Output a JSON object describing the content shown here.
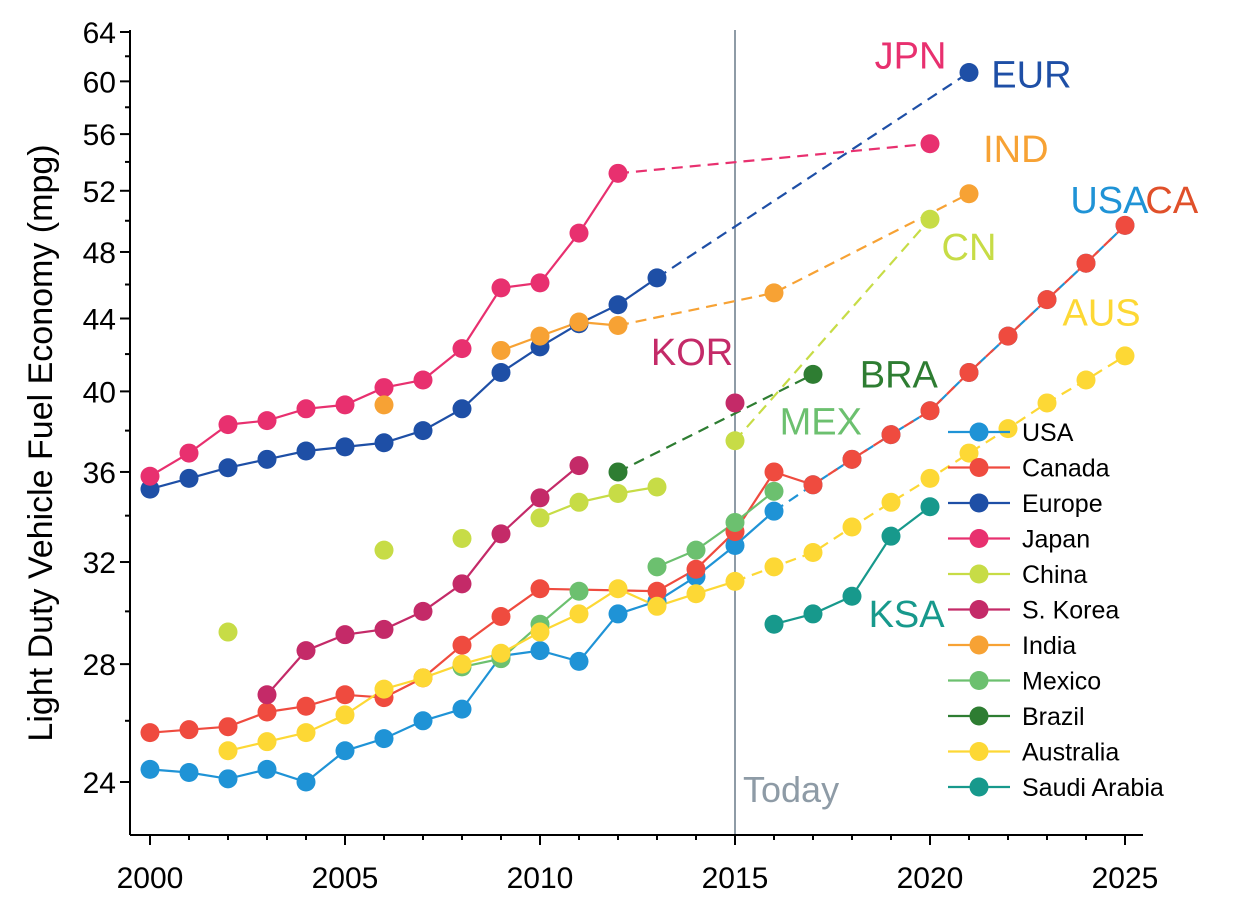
{
  "chart_data": {
    "type": "line",
    "ylabel": "Light Duty Vehicle Fuel Economy (mpg)",
    "xlabel": "",
    "xlim": [
      1999.5,
      2025.5
    ],
    "ylim": [
      22.8,
      64
    ],
    "y_scale": "log",
    "x_ticks": [
      2000,
      2005,
      2010,
      2015,
      2020,
      2025
    ],
    "y_ticks": [
      24,
      28,
      32,
      36,
      40,
      44,
      48,
      52,
      56,
      60,
      64
    ],
    "today_line": {
      "x": 2015,
      "label": "Today"
    },
    "series": [
      {
        "name": "USA",
        "color": "#1f93d6",
        "solid": [
          [
            2000,
            24.4
          ],
          [
            2001,
            24.3
          ],
          [
            2002,
            24.1
          ],
          [
            2003,
            24.4
          ],
          [
            2004,
            24.0
          ],
          [
            2005,
            25.0
          ],
          [
            2006,
            25.4
          ],
          [
            2007,
            26.0
          ],
          [
            2008,
            26.4
          ],
          [
            2009,
            28.3
          ],
          [
            2010,
            28.5
          ],
          [
            2011,
            28.1
          ],
          [
            2012,
            29.9
          ],
          [
            2013,
            30.4
          ],
          [
            2014,
            31.4
          ],
          [
            2015,
            32.7
          ],
          [
            2016,
            34.2
          ]
        ],
        "dashed": [
          [
            2016,
            34.2
          ],
          [
            2017,
            35.4
          ],
          [
            2018,
            36.6
          ],
          [
            2019,
            37.8
          ],
          [
            2020,
            39.0
          ],
          [
            2021,
            41.0
          ],
          [
            2022,
            43.0
          ],
          [
            2023,
            45.1
          ],
          [
            2024,
            47.3
          ],
          [
            2025,
            49.7
          ]
        ]
      },
      {
        "name": "Canada",
        "color": "#ef4b3f",
        "solid": [
          [
            2000,
            25.6
          ],
          [
            2001,
            25.7
          ],
          [
            2002,
            25.8
          ],
          [
            2003,
            26.3
          ],
          [
            2004,
            26.5
          ],
          [
            2005,
            26.9
          ],
          [
            2006,
            26.8
          ],
          [
            2007,
            27.5
          ],
          [
            2008,
            28.7
          ],
          [
            2009,
            29.8
          ],
          [
            2010,
            30.9
          ],
          [
            2013,
            30.8
          ],
          [
            2014,
            31.7
          ],
          [
            2015,
            33.3
          ],
          [
            2016,
            36.0
          ],
          [
            2017,
            35.4
          ]
        ],
        "dashed": [
          [
            2017,
            35.4
          ],
          [
            2018,
            36.6
          ],
          [
            2019,
            37.8
          ],
          [
            2020,
            39.0
          ],
          [
            2021,
            41.0
          ],
          [
            2022,
            43.0
          ],
          [
            2023,
            45.1
          ],
          [
            2024,
            47.3
          ],
          [
            2025,
            49.7
          ]
        ]
      },
      {
        "name": "Europe",
        "color": "#1e4fa6",
        "solid": [
          [
            2000,
            35.2
          ],
          [
            2001,
            35.7
          ],
          [
            2002,
            36.2
          ],
          [
            2003,
            36.6
          ],
          [
            2004,
            37.0
          ],
          [
            2005,
            37.2
          ],
          [
            2006,
            37.4
          ],
          [
            2007,
            38.0
          ],
          [
            2008,
            39.1
          ],
          [
            2009,
            41.0
          ],
          [
            2010,
            42.4
          ],
          [
            2011,
            43.7
          ],
          [
            2012,
            44.8
          ],
          [
            2013,
            46.4
          ]
        ],
        "dashed": [
          [
            2013,
            46.4
          ],
          [
            2021,
            60.7
          ]
        ]
      },
      {
        "name": "Japan",
        "color": "#e8306f",
        "solid": [
          [
            2000,
            35.8
          ],
          [
            2001,
            36.9
          ],
          [
            2002,
            38.3
          ],
          [
            2003,
            38.5
          ],
          [
            2004,
            39.1
          ],
          [
            2005,
            39.3
          ],
          [
            2006,
            40.2
          ],
          [
            2007,
            40.6
          ],
          [
            2008,
            42.3
          ],
          [
            2009,
            45.8
          ],
          [
            2010,
            46.1
          ],
          [
            2011,
            49.2
          ],
          [
            2012,
            53.2
          ]
        ],
        "dashed": [
          [
            2012,
            53.2
          ],
          [
            2020,
            55.3
          ]
        ]
      },
      {
        "name": "China",
        "color": "#c7dc46",
        "points": [
          [
            2002,
            29.2
          ],
          [
            2006,
            32.5
          ],
          [
            2008,
            33.0
          ]
        ],
        "solid": [
          [
            2010,
            33.9
          ],
          [
            2011,
            34.6
          ],
          [
            2012,
            35.0
          ],
          [
            2013,
            35.3
          ]
        ],
        "dashed": [
          [
            2015,
            37.5
          ],
          [
            2020,
            50.1
          ]
        ]
      },
      {
        "name": "S. Korea",
        "color": "#c42a68",
        "solid": [
          [
            2003,
            26.9
          ],
          [
            2004,
            28.5
          ],
          [
            2005,
            29.1
          ],
          [
            2006,
            29.3
          ],
          [
            2007,
            30.0
          ],
          [
            2008,
            31.1
          ],
          [
            2009,
            33.2
          ],
          [
            2010,
            34.8
          ],
          [
            2011,
            36.3
          ]
        ],
        "points": [
          [
            2015,
            39.4
          ]
        ]
      },
      {
        "name": "India",
        "color": "#f7a234",
        "points": [
          [
            2006,
            39.3
          ]
        ],
        "solid": [
          [
            2009,
            42.2
          ],
          [
            2010,
            43.0
          ],
          [
            2011,
            43.8
          ],
          [
            2012,
            43.6
          ]
        ],
        "dashed": [
          [
            2012,
            43.6
          ],
          [
            2016,
            45.5
          ],
          [
            2021,
            51.8
          ]
        ]
      },
      {
        "name": "Mexico",
        "color": "#6cc06f",
        "solid": [
          [
            2008,
            27.9
          ],
          [
            2009,
            28.2
          ],
          [
            2010,
            29.5
          ],
          [
            2011,
            30.8
          ]
        ],
        "solid2": [
          [
            2013,
            31.8
          ],
          [
            2014,
            32.5
          ],
          [
            2015,
            33.7
          ],
          [
            2016,
            35.1
          ]
        ]
      },
      {
        "name": "Brazil",
        "color": "#2e7d32",
        "dashed": [
          [
            2012,
            36.0
          ],
          [
            2017,
            40.9
          ]
        ]
      },
      {
        "name": "Australia",
        "color": "#fdd835",
        "solid": [
          [
            2002,
            25.0
          ],
          [
            2003,
            25.3
          ],
          [
            2004,
            25.6
          ],
          [
            2005,
            26.2
          ],
          [
            2006,
            27.1
          ],
          [
            2007,
            27.5
          ],
          [
            2008,
            28.0
          ],
          [
            2009,
            28.4
          ],
          [
            2010,
            29.2
          ],
          [
            2011,
            29.9
          ],
          [
            2012,
            30.9
          ],
          [
            2013,
            30.2
          ],
          [
            2014,
            30.7
          ],
          [
            2015,
            31.2
          ]
        ],
        "dashed": [
          [
            2015,
            31.2
          ],
          [
            2016,
            31.8
          ],
          [
            2017,
            32.4
          ],
          [
            2018,
            33.5
          ],
          [
            2019,
            34.6
          ],
          [
            2020,
            35.7
          ],
          [
            2021,
            36.9
          ],
          [
            2022,
            38.1
          ],
          [
            2023,
            39.4
          ],
          [
            2024,
            40.6
          ],
          [
            2025,
            41.9
          ]
        ]
      },
      {
        "name": "Saudi Arabia",
        "color": "#17998c",
        "solid": [
          [
            2016,
            29.5
          ],
          [
            2017,
            29.9
          ],
          [
            2018,
            30.6
          ],
          [
            2019,
            33.1
          ],
          [
            2020,
            34.4
          ]
        ]
      }
    ],
    "annotations": [
      {
        "text": "JPN",
        "color": "#e8306f",
        "x": 2019.5,
        "y": 61.0
      },
      {
        "text": "EUR",
        "color": "#1e4fa6",
        "x": 2022.6,
        "y": 59.5
      },
      {
        "text": "IND",
        "color": "#f7a234",
        "x": 2022.2,
        "y": 54.0
      },
      {
        "text": "USA",
        "color": "#1f93d6",
        "x": 2024.6,
        "y": 50.5
      },
      {
        "text": "CA",
        "color": "#e0502a",
        "x": 2026.2,
        "y": 50.5
      },
      {
        "text": "CN",
        "color": "#c7dc46",
        "x": 2021.0,
        "y": 47.5
      },
      {
        "text": "KOR",
        "color": "#c42a68",
        "x": 2013.9,
        "y": 41.4
      },
      {
        "text": "BRA",
        "color": "#2e7d32",
        "x": 2019.2,
        "y": 40.2
      },
      {
        "text": "MEX",
        "color": "#6cc06f",
        "x": 2017.2,
        "y": 37.8
      },
      {
        "text": "AUS",
        "color": "#fdd835",
        "x": 2024.4,
        "y": 43.6
      },
      {
        "text": "KSA",
        "color": "#17998c",
        "x": 2019.4,
        "y": 29.4
      }
    ]
  }
}
